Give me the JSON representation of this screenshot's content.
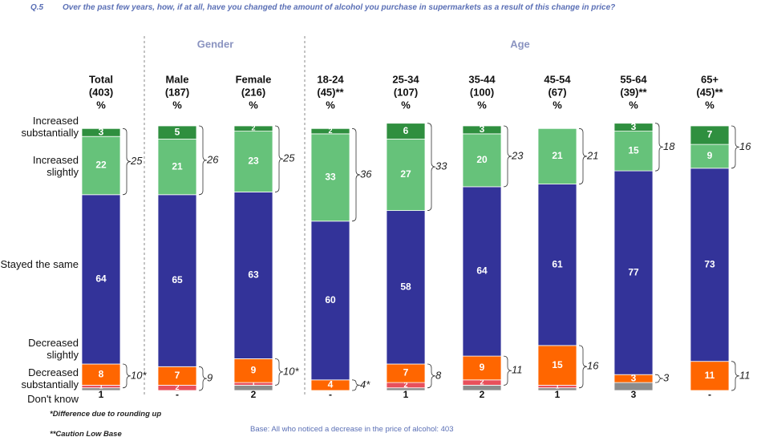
{
  "question_number": "Q.5",
  "question": "Over the past few years, how, if at all, have you changed the amount of alcohol you purchase in supermarkets as a result of this change in price?",
  "chart_data": {
    "type": "stacked_bar",
    "groups": [
      {
        "label": "Gender",
        "from": 1,
        "to": 2
      },
      {
        "label": "Age",
        "from": 3,
        "to": 8
      }
    ],
    "categories": [
      [
        "Total",
        "(403)",
        "%"
      ],
      [
        "Male",
        "(187)",
        "%"
      ],
      [
        "Female",
        "(216)",
        "%"
      ],
      [
        "18-24",
        "(45)**",
        "%"
      ],
      [
        "25-34",
        "(107)",
        "%"
      ],
      [
        "35-44",
        "(100)",
        "%"
      ],
      [
        "45-54",
        "(67)",
        "%"
      ],
      [
        "55-64",
        "(39)**",
        "%"
      ],
      [
        "65+",
        "(45)**",
        "%"
      ]
    ],
    "series": [
      {
        "name": "Increased substantially",
        "color": "#2f8f3f",
        "values": [
          3,
          5,
          2,
          2,
          6,
          3,
          0,
          3,
          7
        ],
        "value_labels": [
          null,
          null,
          null,
          null,
          null,
          null,
          "-",
          null,
          null
        ]
      },
      {
        "name": "Increased slightly",
        "color": "#66c27a",
        "values": [
          22,
          21,
          23,
          33,
          27,
          20,
          21,
          15,
          9
        ]
      },
      {
        "name": "Stayed the same",
        "color": "#333399",
        "values": [
          64,
          65,
          63,
          60,
          58,
          64,
          61,
          77,
          73
        ]
      },
      {
        "name": "Decreased slightly",
        "color": "#ff6600",
        "values": [
          8,
          7,
          9,
          4,
          7,
          9,
          15,
          3,
          11
        ]
      },
      {
        "name": "Decreased substantially",
        "color": "#e8505b",
        "values": [
          1,
          2,
          1,
          null,
          2,
          2,
          1,
          0,
          0
        ],
        "value_labels": [
          null,
          null,
          null,
          null,
          null,
          null,
          null,
          "-",
          "-"
        ]
      },
      {
        "name": "Don't know",
        "color": "#8c8c8c",
        "values": [
          1,
          0,
          2,
          0,
          1,
          2,
          1,
          3,
          0
        ],
        "value_labels": [
          null,
          "-",
          null,
          "-",
          null,
          null,
          null,
          null,
          "-"
        ]
      }
    ],
    "increase_totals": [
      25,
      26,
      25,
      36,
      33,
      23,
      21,
      18,
      16
    ],
    "decrease_totals": [
      "10*",
      9,
      "10*",
      "4*",
      8,
      11,
      16,
      3,
      11
    ]
  },
  "footnotes": [
    "*Difference due to rounding up",
    "**Caution Low Base"
  ],
  "base": "Base:  All who noticed a decrease in the price of alcohol: 403"
}
